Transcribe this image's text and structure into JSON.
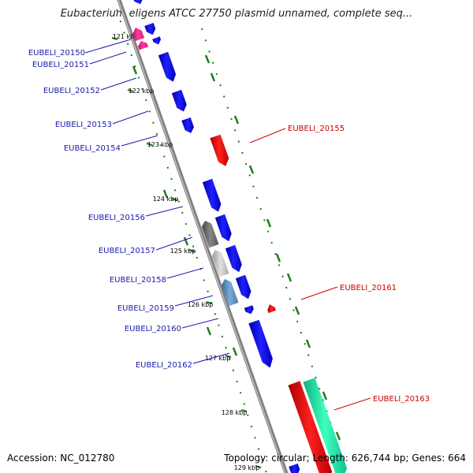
{
  "title": "Eubacterium eligens ATCC 27750 plasmid unnamed, complete seq...",
  "footer": {
    "accession": "Accession: NC_012780",
    "summary": "Topology: circular; Length: 626,744 bp; Genes: 664"
  },
  "colors": {
    "forward_gene": "#0000ee",
    "reverse_gene": "#ee0000",
    "label_left": "#1a1aaa",
    "label_right": "#cc0000",
    "backbone": "#808080",
    "gc_dots": "#1a7a1a",
    "green_gene": "#20e0a0",
    "magenta_gene": "#e0208a"
  },
  "ticks": [
    {
      "label": "121 kbp"
    },
    {
      "label": "122 kbp"
    },
    {
      "label": "123 kbp"
    },
    {
      "label": "124 kbp"
    },
    {
      "label": "125 kbp"
    },
    {
      "label": "126 kbp"
    },
    {
      "label": "127 kbp"
    },
    {
      "label": "128 kbp"
    },
    {
      "label": "129 kbp"
    }
  ],
  "genes_left": [
    {
      "name": "EUBELI_20150"
    },
    {
      "name": "EUBELI_20151"
    },
    {
      "name": "EUBELI_20152"
    },
    {
      "name": "EUBELI_20153"
    },
    {
      "name": "EUBELI_20154"
    },
    {
      "name": "EUBELI_20156"
    },
    {
      "name": "EUBELI_20157"
    },
    {
      "name": "EUBELI_20158"
    },
    {
      "name": "EUBELI_20159"
    },
    {
      "name": "EUBELI_20160"
    },
    {
      "name": "EUBELI_20162"
    }
  ],
  "genes_right": [
    {
      "name": "EUBELI_20155"
    },
    {
      "name": "EUBELI_20161"
    },
    {
      "name": "EUBELI_20163"
    }
  ]
}
